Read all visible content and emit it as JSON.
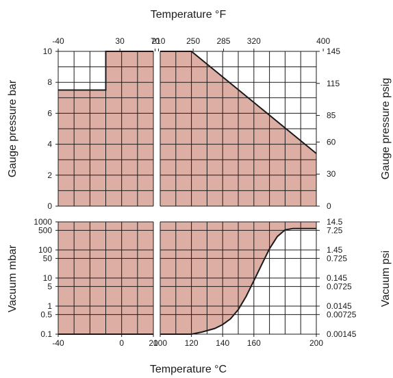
{
  "chart_data": {
    "type": "area",
    "fill_color": "#dcaea4",
    "line_color": "#1a1a1a",
    "grid": true,
    "x_top_title": "Temperature °F",
    "x_bottom_title": "Temperature °C",
    "y_left_top_title": "Gauge pressure bar",
    "y_left_bottom_title": "Vacuum mbar",
    "y_right_top_title": "Gauge pressure psig",
    "y_right_bottom_title": "Vacuum psi",
    "x_left_ticks_c": [
      {
        "v": -40,
        "label": "-40"
      },
      {
        "v": 0,
        "label": "0"
      },
      {
        "v": 20,
        "label": "20"
      }
    ],
    "x_right_ticks_c": [
      {
        "v": 100,
        "label": "100"
      },
      {
        "v": 120,
        "label": "120"
      },
      {
        "v": 140,
        "label": "140"
      },
      {
        "v": 160,
        "label": "160"
      },
      {
        "v": 200,
        "label": "200"
      }
    ],
    "x_left_ticks_f": [
      {
        "v": -40,
        "label": "-40"
      },
      {
        "v": 30,
        "label": "30"
      },
      {
        "v": 70,
        "label": "70"
      }
    ],
    "x_right_ticks_f": [
      {
        "v": 210,
        "label": "210"
      },
      {
        "v": 250,
        "label": "250"
      },
      {
        "v": 285,
        "label": "285"
      },
      {
        "v": 320,
        "label": "320"
      },
      {
        "v": 400,
        "label": "400"
      }
    ],
    "y_top_left_ticks": [
      "0",
      "2",
      "4",
      "6",
      "8",
      "10"
    ],
    "y_top_right_ticks": [
      {
        "bar": 0,
        "label": "0"
      },
      {
        "bar": 2.07,
        "label": "30"
      },
      {
        "bar": 4.14,
        "label": "60"
      },
      {
        "bar": 5.86,
        "label": "85"
      },
      {
        "bar": 7.93,
        "label": "115"
      },
      {
        "bar": 10,
        "label": "145"
      }
    ],
    "y_bottom_left_ticks": [
      {
        "v": 0.1,
        "label": "0.1"
      },
      {
        "v": 0.5,
        "label": "0.5"
      },
      {
        "v": 1,
        "label": "1"
      },
      {
        "v": 5,
        "label": "5"
      },
      {
        "v": 10,
        "label": "10"
      },
      {
        "v": 50,
        "label": "50"
      },
      {
        "v": 100,
        "label": "100"
      },
      {
        "v": 500,
        "label": "500"
      },
      {
        "v": 1000,
        "label": "1000"
      }
    ],
    "y_bottom_right_ticks": [
      {
        "v": 0.1,
        "label": "0.00145"
      },
      {
        "v": 0.5,
        "label": "0.00725"
      },
      {
        "v": 1,
        "label": "0.0145"
      },
      {
        "v": 5,
        "label": "0.0725"
      },
      {
        "v": 10,
        "label": "0.145"
      },
      {
        "v": 50,
        "label": "0.725"
      },
      {
        "v": 100,
        "label": "1.45"
      },
      {
        "v": 500,
        "label": "7.25"
      },
      {
        "v": 1000,
        "label": "14.5"
      }
    ],
    "pressure_limit_low_range": {
      "x_c": [
        -40,
        -10,
        -10,
        20
      ],
      "y_bar": [
        7.5,
        7.5,
        10,
        10
      ]
    },
    "pressure_limit_high_range": {
      "x_c": [
        100,
        120,
        200
      ],
      "y_bar": [
        10,
        10,
        3.4
      ]
    },
    "vacuum_limit_low_range": {
      "x_c": [
        -40,
        20
      ],
      "y_mbar": [
        0.1,
        0.1
      ]
    },
    "vacuum_limit_high_range": {
      "x_c": [
        100,
        120,
        127,
        135,
        140,
        145,
        150,
        155,
        160,
        165,
        170,
        175,
        180,
        185,
        200
      ],
      "y_mbar": [
        0.1,
        0.1,
        0.12,
        0.16,
        0.22,
        0.35,
        0.75,
        2.2,
        8,
        30,
        110,
        300,
        520,
        580,
        580
      ]
    }
  }
}
